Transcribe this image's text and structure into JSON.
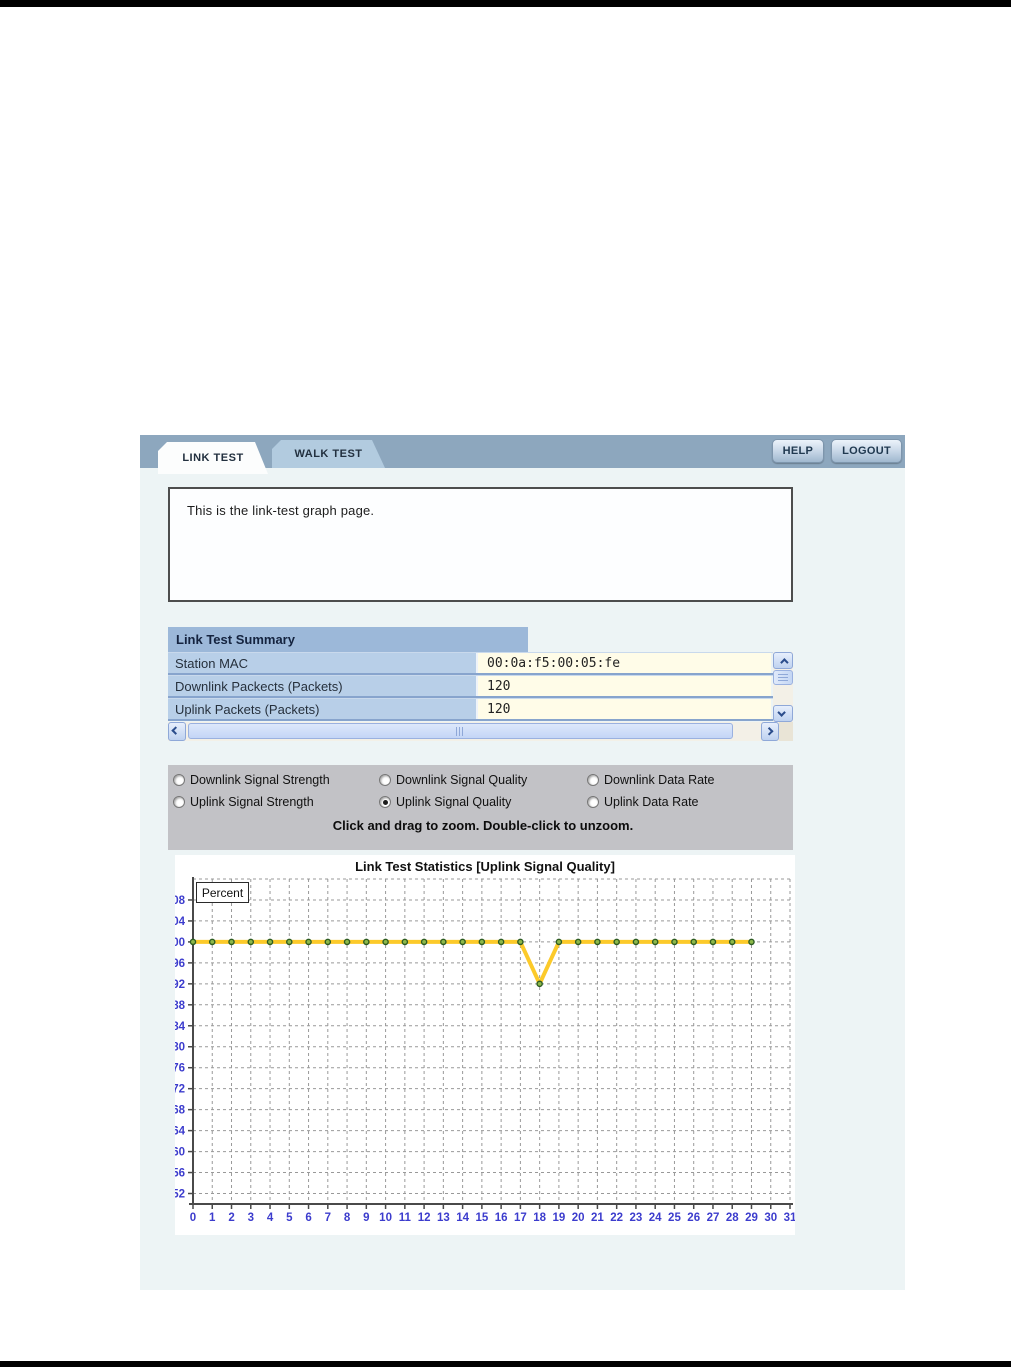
{
  "theme": {
    "header-bar": "#8da7be",
    "tab-inactive": "#b2cbdf",
    "panel-bg": "#edf4f5",
    "table-header": "#9cb8d9",
    "label-cell": "#b8cfe8",
    "value-cell": "#fffce8",
    "gray-panel": "#c2c2c6"
  },
  "header": {
    "tabs": [
      {
        "label": "LINK TEST",
        "active": true
      },
      {
        "label": "WALK TEST",
        "active": false
      }
    ],
    "help_label": "HELP",
    "logout_label": "LOGOUT"
  },
  "description": {
    "text": "This is the link-test graph page."
  },
  "summary": {
    "title": "Link Test Summary",
    "rows": [
      {
        "label": "Station MAC",
        "value": "00:0a:f5:00:05:fe"
      },
      {
        "label": "Downlink Packects (Packets)",
        "value": "120"
      },
      {
        "label": "Uplink Packets (Packets)",
        "value": "120"
      }
    ]
  },
  "controls": {
    "radios": [
      {
        "label": "Downlink Signal Strength",
        "selected": false
      },
      {
        "label": "Downlink Signal Quality",
        "selected": false
      },
      {
        "label": "Downlink Data Rate",
        "selected": false
      },
      {
        "label": "Uplink Signal Strength",
        "selected": false
      },
      {
        "label": "Uplink Signal Quality",
        "selected": true
      },
      {
        "label": "Uplink Data Rate",
        "selected": false
      }
    ],
    "zoom_hint": "Click and drag to zoom. Double-click to unzoom."
  },
  "chart_data": {
    "type": "line",
    "title": "Link Test Statistics [Uplink Signal Quality]",
    "ylabel": "Percent",
    "x": [
      0,
      1,
      2,
      3,
      4,
      5,
      6,
      7,
      8,
      9,
      10,
      11,
      12,
      13,
      14,
      15,
      16,
      17,
      18,
      19,
      20,
      21,
      22,
      23,
      24,
      25,
      26,
      27,
      28,
      29
    ],
    "y": [
      100,
      100,
      100,
      100,
      100,
      100,
      100,
      100,
      100,
      100,
      100,
      100,
      100,
      100,
      100,
      100,
      100,
      100,
      92,
      100,
      100,
      100,
      100,
      100,
      100,
      100,
      100,
      100,
      100,
      100
    ],
    "xlim": [
      0,
      31
    ],
    "ylim": [
      50,
      112
    ],
    "x_ticks": [
      0,
      1,
      2,
      3,
      4,
      5,
      6,
      7,
      8,
      9,
      10,
      11,
      12,
      13,
      14,
      15,
      16,
      17,
      18,
      19,
      20,
      21,
      22,
      23,
      24,
      25,
      26,
      27,
      28,
      29,
      30,
      31
    ],
    "y_ticks": [
      52,
      56,
      60,
      64,
      68,
      72,
      76,
      80,
      84,
      88,
      92,
      96,
      100,
      104,
      108
    ],
    "grid": "dashed",
    "grid_color": "#999999",
    "axis_color": "#4a4a4a",
    "tick_label_color": "#3c3ccd",
    "line_color": "#fcca2a",
    "marker_fill": "#8db94a",
    "marker_stroke": "#2d5c22",
    "legend_position": "none"
  }
}
